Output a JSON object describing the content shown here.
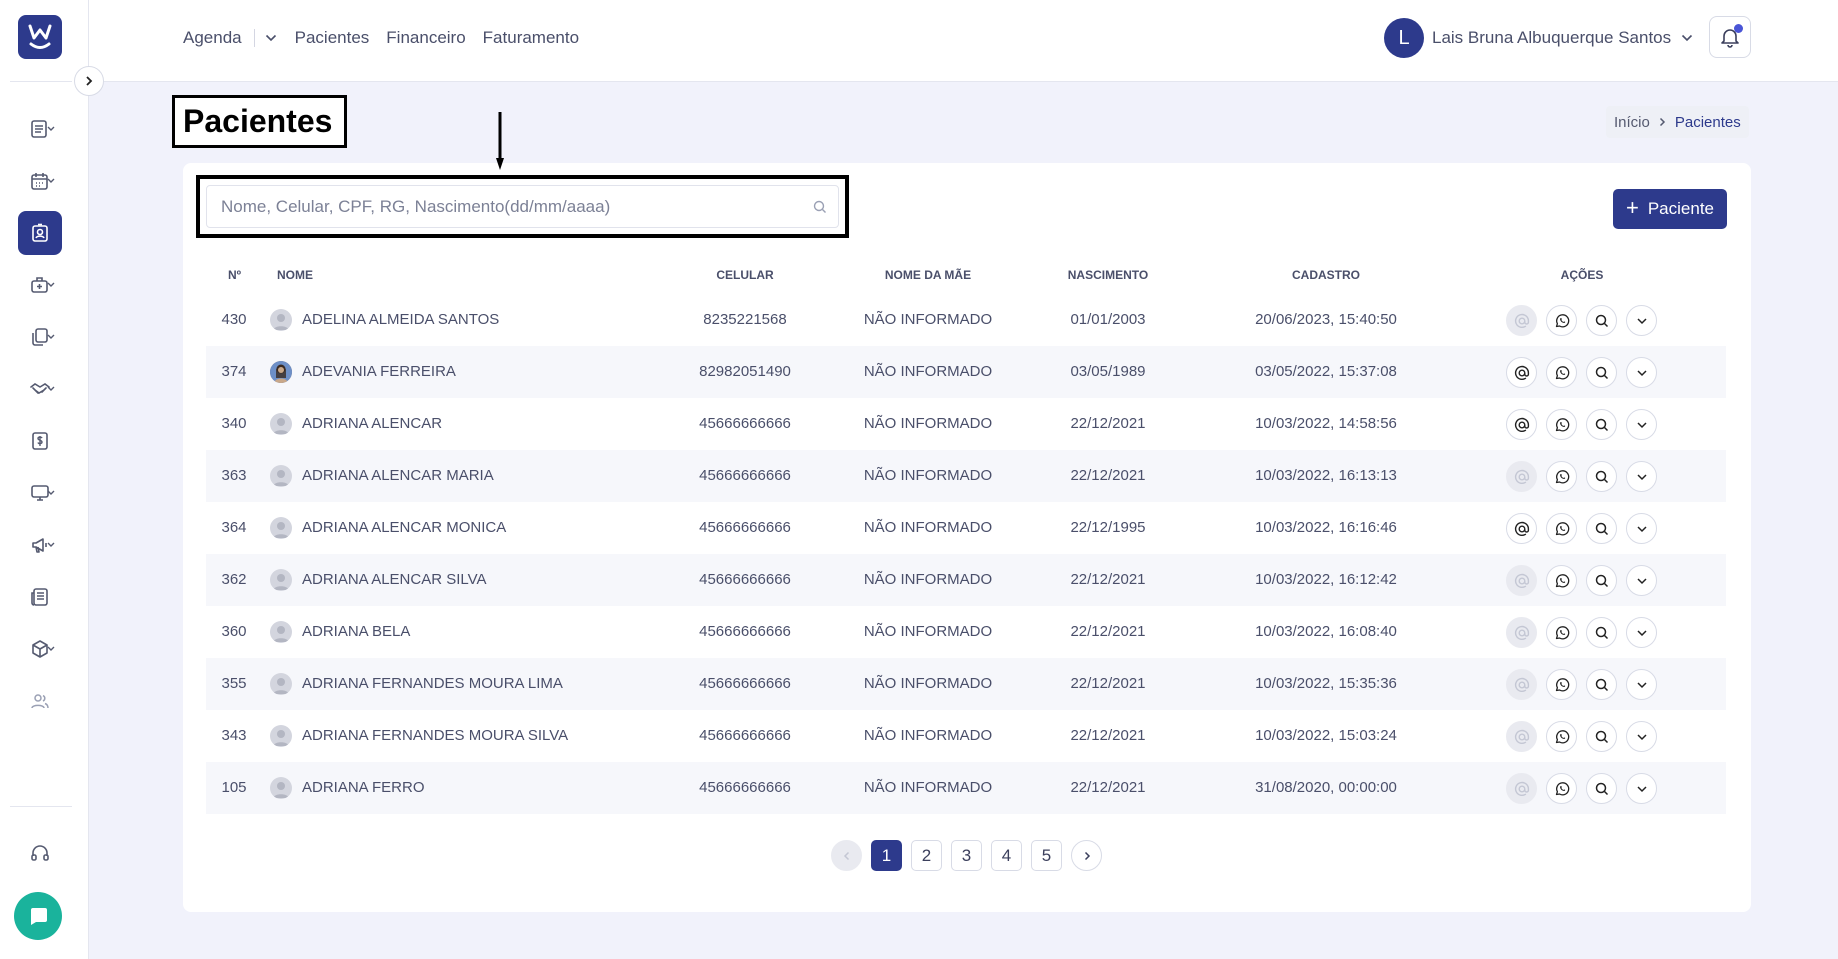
{
  "topnav": {
    "agenda": "Agenda",
    "pacientes": "Pacientes",
    "financeiro": "Financeiro",
    "faturamento": "Faturamento"
  },
  "user": {
    "initial": "L",
    "name": "Lais Bruna Albuquerque Santos"
  },
  "page": {
    "title": "Pacientes"
  },
  "breadcrumb": {
    "home": "Início",
    "current": "Pacientes"
  },
  "search": {
    "placeholder": "Nome, Celular, CPF, RG, Nascimento(dd/mm/aaaa)"
  },
  "add_button": {
    "label": "Paciente"
  },
  "table": {
    "headers": {
      "num": "Nº",
      "nome": "NOME",
      "celular": "CELULAR",
      "mae": "NOME DA MÃE",
      "nascimento": "NASCIMENTO",
      "cadastro": "CADASTRO",
      "acoes": "AÇÕES"
    },
    "rows": [
      {
        "num": "430",
        "nome": "ADELINA ALMEIDA SANTOS",
        "celular": "8235221568",
        "mae": "NÃO INFORMADO",
        "nascimento": "01/01/2003",
        "cadastro": "20/06/2023, 15:40:50",
        "email_enabled": false,
        "photo": false
      },
      {
        "num": "374",
        "nome": "ADEVANIA FERREIRA",
        "celular": "82982051490",
        "mae": "NÃO INFORMADO",
        "nascimento": "03/05/1989",
        "cadastro": "03/05/2022, 15:37:08",
        "email_enabled": true,
        "photo": true
      },
      {
        "num": "340",
        "nome": "ADRIANA ALENCAR",
        "celular": "45666666666",
        "mae": "NÃO INFORMADO",
        "nascimento": "22/12/2021",
        "cadastro": "10/03/2022, 14:58:56",
        "email_enabled": true,
        "photo": false
      },
      {
        "num": "363",
        "nome": "ADRIANA ALENCAR MARIA",
        "celular": "45666666666",
        "mae": "NÃO INFORMADO",
        "nascimento": "22/12/2021",
        "cadastro": "10/03/2022, 16:13:13",
        "email_enabled": false,
        "photo": false
      },
      {
        "num": "364",
        "nome": "ADRIANA ALENCAR MONICA",
        "celular": "45666666666",
        "mae": "NÃO INFORMADO",
        "nascimento": "22/12/1995",
        "cadastro": "10/03/2022, 16:16:46",
        "email_enabled": true,
        "photo": false
      },
      {
        "num": "362",
        "nome": "ADRIANA ALENCAR SILVA",
        "celular": "45666666666",
        "mae": "NÃO INFORMADO",
        "nascimento": "22/12/2021",
        "cadastro": "10/03/2022, 16:12:42",
        "email_enabled": false,
        "photo": false
      },
      {
        "num": "360",
        "nome": "ADRIANA BELA",
        "celular": "45666666666",
        "mae": "NÃO INFORMADO",
        "nascimento": "22/12/2021",
        "cadastro": "10/03/2022, 16:08:40",
        "email_enabled": false,
        "photo": false
      },
      {
        "num": "355",
        "nome": "ADRIANA FERNANDES MOURA LIMA",
        "celular": "45666666666",
        "mae": "NÃO INFORMADO",
        "nascimento": "22/12/2021",
        "cadastro": "10/03/2022, 15:35:36",
        "email_enabled": false,
        "photo": false
      },
      {
        "num": "343",
        "nome": "ADRIANA FERNANDES MOURA SILVA",
        "celular": "45666666666",
        "mae": "NÃO INFORMADO",
        "nascimento": "22/12/2021",
        "cadastro": "10/03/2022, 15:03:24",
        "email_enabled": false,
        "photo": false
      },
      {
        "num": "105",
        "nome": "ADRIANA FERRO",
        "celular": "45666666666",
        "mae": "NÃO INFORMADO",
        "nascimento": "22/12/2021",
        "cadastro": "31/08/2020, 00:00:00",
        "email_enabled": false,
        "photo": false
      }
    ]
  },
  "pagination": {
    "pages": [
      "1",
      "2",
      "3",
      "4",
      "5"
    ],
    "current": "1"
  },
  "colors": {
    "primary": "#2d3a8c",
    "chat": "#1ab39c",
    "background": "#f1f2fb"
  }
}
